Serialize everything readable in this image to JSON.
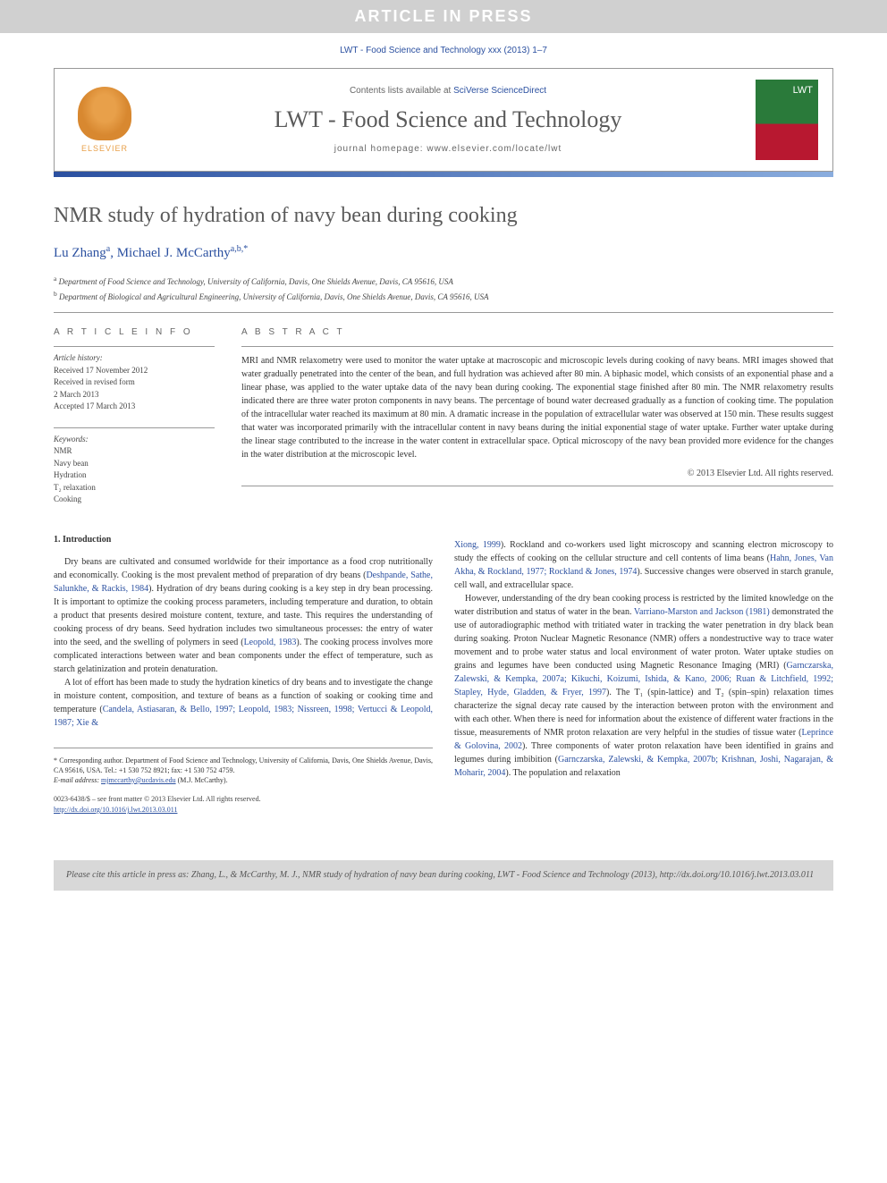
{
  "banner": "ARTICLE IN PRESS",
  "citation_header": "LWT - Food Science and Technology xxx (2013) 1–7",
  "header": {
    "contents_prefix": "Contents lists available at ",
    "contents_link": "SciVerse ScienceDirect",
    "journal_name": "LWT - Food Science and Technology",
    "homepage_prefix": "journal homepage: ",
    "homepage_url": "www.elsevier.com/locate/lwt",
    "elsevier_label": "ELSEVIER",
    "cover_label": "LWT"
  },
  "title": "NMR study of hydration of navy bean during cooking",
  "authors_html": "Lu Zhang<sup>a</sup>, Michael J. McCarthy<sup>a,b,*</sup>",
  "affiliations": {
    "a": "Department of Food Science and Technology, University of California, Davis, One Shields Avenue, Davis, CA 95616, USA",
    "b": "Department of Biological and Agricultural Engineering, University of California, Davis, One Shields Avenue, Davis, CA 95616, USA"
  },
  "article_info": {
    "heading": "A R T I C L E   I N F O",
    "history_label": "Article history:",
    "received": "Received 17 November 2012",
    "revised1": "Received in revised form",
    "revised2": "2 March 2013",
    "accepted": "Accepted 17 March 2013",
    "keywords_label": "Keywords:",
    "keywords": [
      "NMR",
      "Navy bean",
      "Hydration",
      "T₂ relaxation",
      "Cooking"
    ]
  },
  "abstract": {
    "heading": "A B S T R A C T",
    "text": "MRI and NMR relaxometry were used to monitor the water uptake at macroscopic and microscopic levels during cooking of navy beans. MRI images showed that water gradually penetrated into the center of the bean, and full hydration was achieved after 80 min. A biphasic model, which consists of an exponential phase and a linear phase, was applied to the water uptake data of the navy bean during cooking. The exponential stage finished after 80 min. The NMR relaxometry results indicated there are three water proton components in navy beans. The percentage of bound water decreased gradually as a function of cooking time. The population of the intracellular water reached its maximum at 80 min. A dramatic increase in the population of extracellular water was observed at 150 min. These results suggest that water was incorporated primarily with the intracellular content in navy beans during the initial exponential stage of water uptake. Further water uptake during the linear stage contributed to the increase in the water content in extracellular space. Optical microscopy of the navy bean provided more evidence for the changes in the water distribution at the microscopic level.",
    "copyright": "© 2013 Elsevier Ltd. All rights reserved."
  },
  "body": {
    "intro_heading": "1. Introduction",
    "col1_p1a": "Dry beans are cultivated and consumed worldwide for their importance as a food crop nutritionally and economically. Cooking is the most prevalent method of preparation of dry beans (",
    "col1_p1_ref1": "Deshpande, Sathe, Salunkhe, & Rackis, 1984",
    "col1_p1b": "). Hydration of dry beans during cooking is a key step in dry bean processing. It is important to optimize the cooking process parameters, including temperature and duration, to obtain a product that presents desired moisture content, texture, and taste. This requires the understanding of cooking process of dry beans. Seed hydration includes two simultaneous processes: the entry of water into the seed, and the swelling of polymers in seed (",
    "col1_p1_ref2": "Leopold, 1983",
    "col1_p1c": "). The cooking process involves more complicated interactions between water and bean components under the effect of temperature, such as starch gelatinization and protein denaturation.",
    "col1_p2a": "A lot of effort has been made to study the hydration kinetics of dry beans and to investigate the change in moisture content, composition, and texture of beans as a function of soaking or cooking time and temperature (",
    "col1_p2_refs": "Candela, Astiasaran, & Bello, 1997; Leopold, 1983; Nissreen, 1998; Vertucci & Leopold, 1987; Xie &",
    "col2_p1_ref1": "Xiong, 1999",
    "col2_p1a": "). Rockland and co-workers used light microscopy and scanning electron microscopy to study the effects of cooking on the cellular structure and cell contents of lima beans (",
    "col2_p1_ref2": "Hahn, Jones, Van Akha, & Rockland, 1977; Rockland & Jones, 1974",
    "col2_p1b": "). Successive changes were observed in starch granule, cell wall, and extracellular space.",
    "col2_p2a": "However, understanding of the dry bean cooking process is restricted by the limited knowledge on the water distribution and status of water in the bean. ",
    "col2_p2_ref1": "Varriano-Marston and Jackson (1981)",
    "col2_p2b": " demonstrated the use of autoradiographic method with tritiated water in tracking the water penetration in dry black bean during soaking. Proton Nuclear Magnetic Resonance (NMR) offers a nondestructive way to trace water movement and to probe water status and local environment of water proton. Water uptake studies on grains and legumes have been conducted using Magnetic Resonance Imaging (MRI) (",
    "col2_p2_ref2": "Garnczarska, Zalewski, & Kempka, 2007a; Kikuchi, Koizumi, Ishida, & Kano, 2006; Ruan & Litchfield, 1992; Stapley, Hyde, Gladden, & Fryer, 1997",
    "col2_p2c": "). The T₁ (spin-lattice) and T₂ (spin–spin) relaxation times characterize the signal decay rate caused by the interaction between proton with the environment and with each other. When there is need for information about the existence of different water fractions in the tissue, measurements of NMR proton relaxation are very helpful in the studies of tissue water (",
    "col2_p2_ref3": "Leprince & Golovina, 2002",
    "col2_p2d": "). Three components of water proton relaxation have been identified in grains and legumes during imbibition (",
    "col2_p2_ref4": "Garnczarska, Zalewski, & Kempka, 2007b; Krishnan, Joshi, Nagarajan, & Moharir, 2004",
    "col2_p2e": "). The population and relaxation"
  },
  "footer": {
    "corr": "* Corresponding author. Department of Food Science and Technology, University of California, Davis, One Shields Avenue, Davis, CA 95616, USA. Tel.: +1 530 752 8921; fax: +1 530 752 4759.",
    "email_label": "E-mail address:",
    "email": "mjmccarthy@ucdavis.edu",
    "email_suffix": "(M.J. McCarthy).",
    "issn_line": "0023-6438/$ – see front matter © 2013 Elsevier Ltd. All rights reserved.",
    "doi": "http://dx.doi.org/10.1016/j.lwt.2013.03.011"
  },
  "cite_box": "Please cite this article in press as: Zhang, L., & McCarthy, M. J., NMR study of hydration of navy bean during cooking, LWT - Food Science and Technology (2013), http://dx.doi.org/10.1016/j.lwt.2013.03.011",
  "colors": {
    "link": "#2b50a0",
    "banner_bg": "#d0d0d0",
    "gradient_start": "#2b50a0",
    "gradient_end": "#8aadde"
  }
}
